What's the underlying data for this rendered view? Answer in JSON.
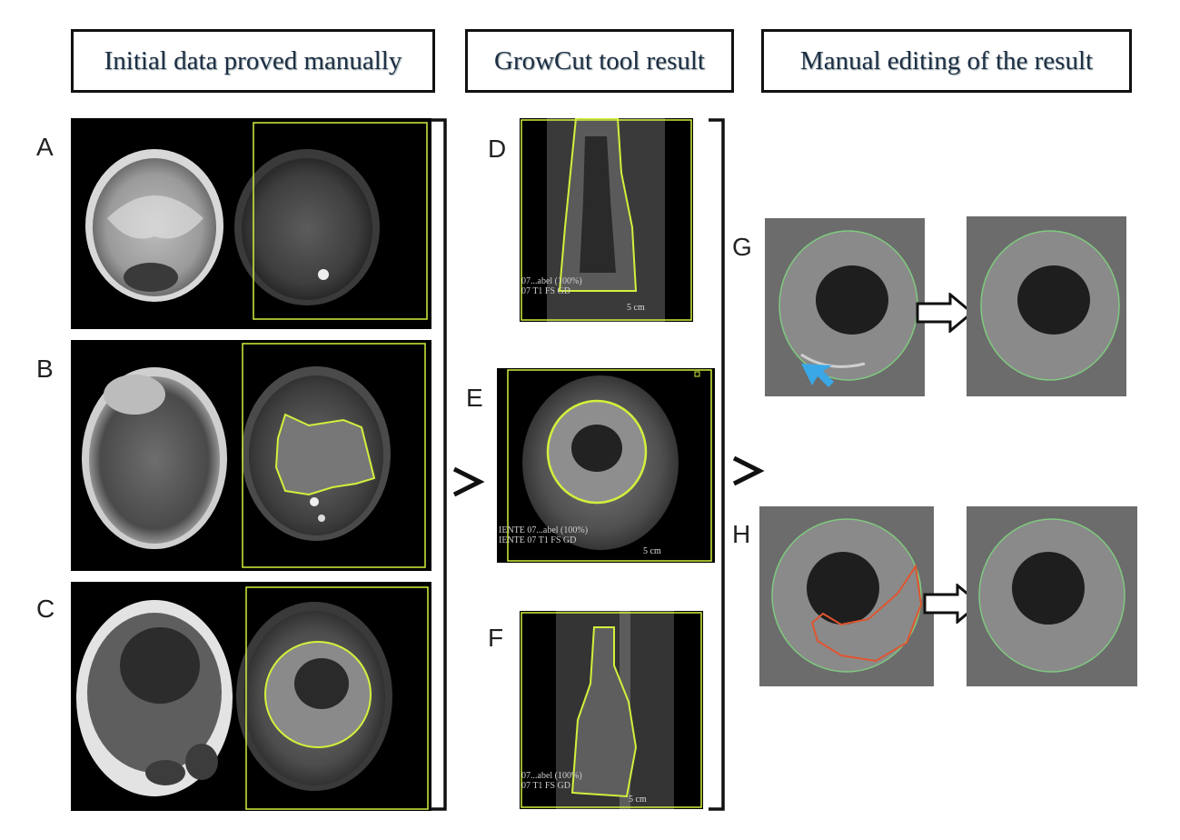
{
  "headers": {
    "col1": "Initial data proved manually",
    "col2": "GrowCut tool result",
    "col3": "Manual editing of the result"
  },
  "panel_labels": [
    "A",
    "B",
    "C",
    "D",
    "E",
    "F",
    "G",
    "H"
  ],
  "overlays": {
    "d_text": "07...abel (100%)\n07 T1 FS GD",
    "d_scale": "5 cm",
    "e_text": "IENTE 07...abel (100%)\nIENTE 07 T1 FS GD",
    "e_scale": "5 cm",
    "f_text": "07...abel (100%)\n07 T1 FS GD",
    "f_scale": "5 cm"
  },
  "colors": {
    "segmentation_outline": "#d4ef3c",
    "edited_outline": "#7fc97f",
    "removed_outline": "#e0552f",
    "pointer_arrow": "#3aa7e6"
  }
}
